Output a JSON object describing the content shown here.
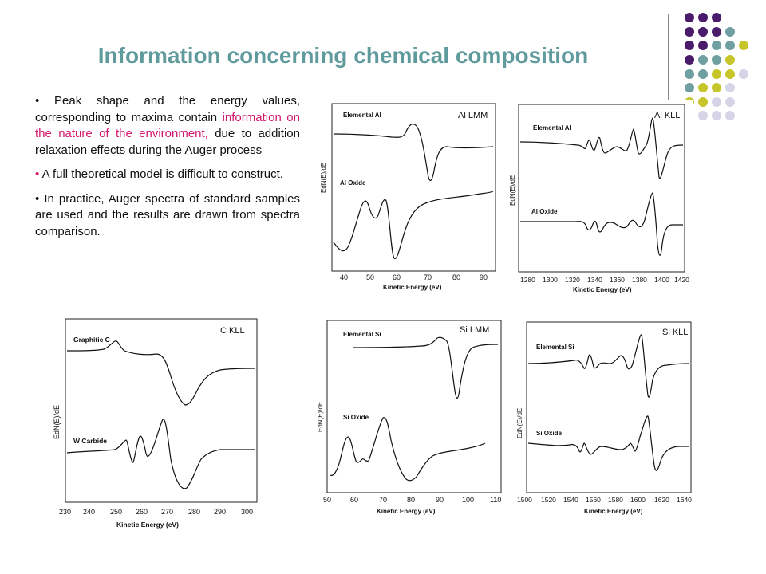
{
  "slide": {
    "title": "Information concerning chemical composition",
    "bullets": {
      "b1_part1": "Peak shape and the energy values, corresponding to maxima contain ",
      "b1_highlight": "information on the nature of the environment,",
      "b1_part2": " due to addition relaxation effects during the Auger process",
      "b2": "A full theoretical model is difficult to construct.",
      "b3": "In practice, Auger spectra of standard samples are used and the results are drawn from spectra comparison."
    },
    "accent_colors": {
      "title": "#5f9a9c",
      "highlight": "#d4186e",
      "dot_purple": "#4a1a6b",
      "dot_teal": "#6f9fa0",
      "dot_yellow": "#c6c62a",
      "dot_lavender": "#d6d4e6"
    }
  },
  "figures": {
    "al_lmm": {
      "title": "Al LMM",
      "ylabel": "EdN(E)/dE",
      "xlabel": "Kinetic Energy (eV)",
      "label_top": "Elemental Al",
      "label_bottom": "Al Oxide",
      "ticks": [
        "40",
        "50",
        "60",
        "70",
        "80",
        "90"
      ]
    },
    "al_kll": {
      "title": "Al KLL",
      "ylabel": "EdN(E)/dE",
      "xlabel": "Kinetic Energy (eV)",
      "label_top": "Elemental Al",
      "label_bottom": "Al Oxide",
      "ticks": [
        "1280",
        "1300",
        "1320",
        "1340",
        "1360",
        "1380",
        "1400",
        "1420"
      ]
    },
    "c_kll": {
      "title": "C KLL",
      "ylabel": "EdN(E)/dE",
      "xlabel": "Kinetic Energy (eV)",
      "label_top": "Graphitic C",
      "label_bottom": "W Carbide",
      "ticks": [
        "230",
        "240",
        "250",
        "260",
        "270",
        "280",
        "290",
        "300"
      ]
    },
    "si_lmm": {
      "title": "Si LMM",
      "ylabel": "EdN(E)/dE",
      "xlabel": "Kinetic Energy (eV)",
      "label_top": "Elemental Si",
      "label_bottom": "Si Oxide",
      "ticks": [
        "50",
        "60",
        "70",
        "80",
        "90",
        "100",
        "110"
      ]
    },
    "si_kll": {
      "title": "Si KLL",
      "ylabel": "EdN(E)/dE",
      "xlabel": "Kinetic Energy (eV)",
      "label_top": "Elemental Si",
      "label_bottom": "Si Oxide",
      "ticks": [
        "1500",
        "1520",
        "1540",
        "1560",
        "1580",
        "1600",
        "1620",
        "1640"
      ]
    }
  }
}
